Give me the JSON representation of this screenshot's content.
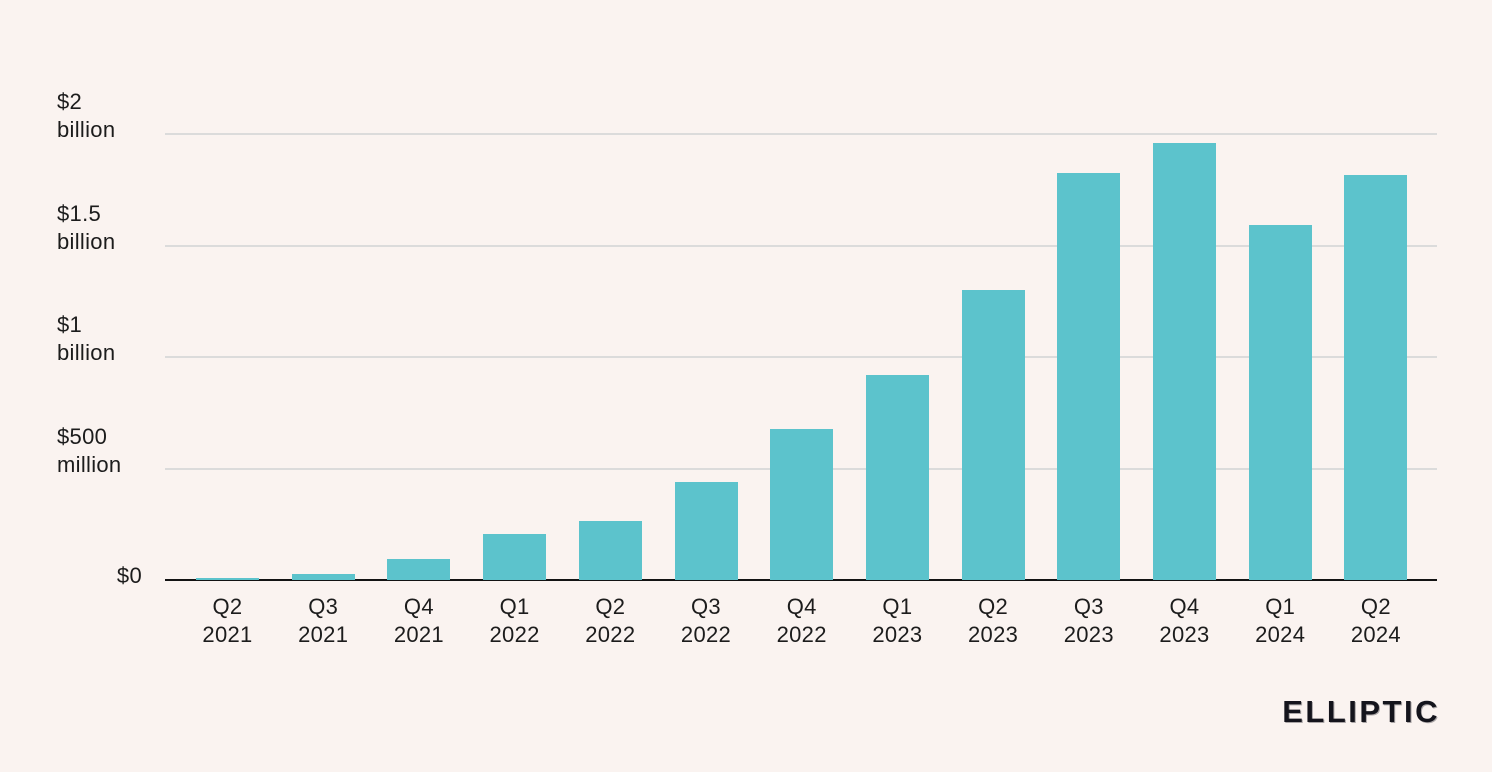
{
  "chart_data": {
    "type": "bar",
    "categories": [
      {
        "quarter": "Q2",
        "year": "2021"
      },
      {
        "quarter": "Q3",
        "year": "2021"
      },
      {
        "quarter": "Q4",
        "year": "2021"
      },
      {
        "quarter": "Q1",
        "year": "2022"
      },
      {
        "quarter": "Q2",
        "year": "2022"
      },
      {
        "quarter": "Q3",
        "year": "2022"
      },
      {
        "quarter": "Q4",
        "year": "2022"
      },
      {
        "quarter": "Q1",
        "year": "2023"
      },
      {
        "quarter": "Q2",
        "year": "2023"
      },
      {
        "quarter": "Q3",
        "year": "2023"
      },
      {
        "quarter": "Q4",
        "year": "2023"
      },
      {
        "quarter": "Q1",
        "year": "2024"
      },
      {
        "quarter": "Q2",
        "year": "2024"
      }
    ],
    "values_million_usd": [
      8,
      25,
      95,
      205,
      265,
      440,
      675,
      920,
      1300,
      1825,
      1960,
      1590,
      1815
    ],
    "y_ticks": [
      {
        "million": 0,
        "line1": "$0",
        "line2": ""
      },
      {
        "million": 500,
        "line1": "$500",
        "line2": "million"
      },
      {
        "million": 1000,
        "line1": "$1",
        "line2": "billion"
      },
      {
        "million": 1500,
        "line1": "$1.5",
        "line2": "billion"
      },
      {
        "million": 2000,
        "line1": "$2",
        "line2": "billion"
      }
    ],
    "ylim_million": [
      0,
      2000
    ],
    "grid": true,
    "legend": "none",
    "bar_color": "#5cc3cc",
    "background_color": "#faf3f0",
    "gridline_color": "#dbdbdb",
    "axis_color": "#131313",
    "text_color": "#1c1c1c"
  },
  "branding": {
    "logo_text": "ELLIPTIC"
  }
}
